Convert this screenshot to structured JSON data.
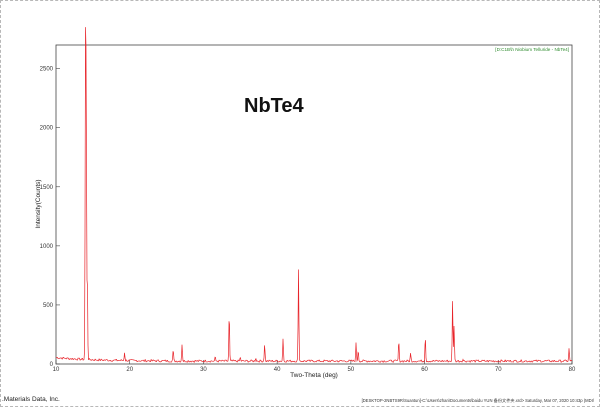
{
  "chart_data": {
    "type": "line",
    "title": "",
    "annotation": "NbTe4",
    "xlabel": "Two-Theta (deg)",
    "ylabel": "Intensity(Counts)",
    "xlim": [
      10,
      80
    ],
    "ylim": [
      0,
      2700
    ],
    "x_ticks": [
      10,
      20,
      30,
      40,
      50,
      60,
      70,
      80
    ],
    "y_ticks": [
      0,
      500,
      1000,
      1500,
      2000,
      2500
    ],
    "grid": false,
    "legend_position": "top-right",
    "series": [
      {
        "name": "[D:C1B\\h Niobium Telluride - NbTe4]",
        "color": "#e8242a",
        "baseline": 25,
        "peaks": [
          {
            "x": 14.0,
            "y": 2550
          },
          {
            "x": 14.1,
            "y": 2080
          },
          {
            "x": 14.25,
            "y": 720
          },
          {
            "x": 19.3,
            "y": 95
          },
          {
            "x": 25.9,
            "y": 115
          },
          {
            "x": 27.1,
            "y": 170
          },
          {
            "x": 31.6,
            "y": 55
          },
          {
            "x": 33.5,
            "y": 430
          },
          {
            "x": 35.0,
            "y": 55
          },
          {
            "x": 37.1,
            "y": 55
          },
          {
            "x": 38.3,
            "y": 170
          },
          {
            "x": 40.8,
            "y": 215
          },
          {
            "x": 42.9,
            "y": 795
          },
          {
            "x": 50.7,
            "y": 175
          },
          {
            "x": 51.0,
            "y": 120
          },
          {
            "x": 56.5,
            "y": 195
          },
          {
            "x": 58.1,
            "y": 90
          },
          {
            "x": 60.1,
            "y": 235
          },
          {
            "x": 63.8,
            "y": 540
          },
          {
            "x": 64.0,
            "y": 330
          },
          {
            "x": 65.2,
            "y": 40
          },
          {
            "x": 79.6,
            "y": 130
          }
        ]
      }
    ]
  },
  "footer": {
    "left": ".Materials Data, Inc.",
    "right": "[DESKTOP-2NBTS9R\\Suantun]-C:\\Users\\zhan\\Documents\\baidu YUN 备份文件夹.xrd> Saturday, Mar 07, 2020 10:43p (MDI/"
  },
  "colors": {
    "trace": "#e8242a",
    "axis": "#444444",
    "legend": "#2e8b2e",
    "background": "#ffffff"
  }
}
